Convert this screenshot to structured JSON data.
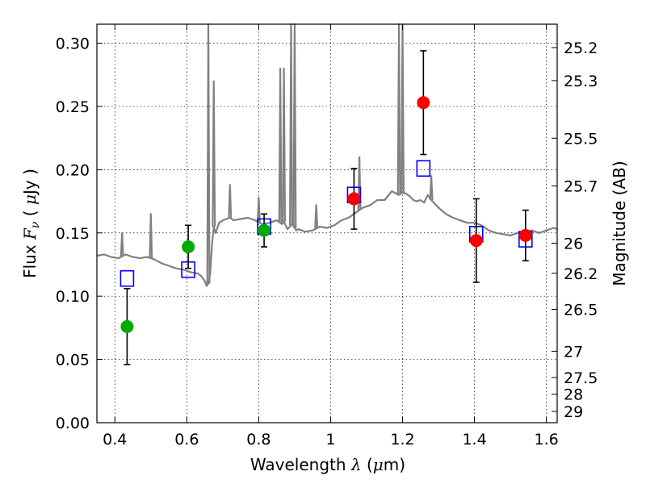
{
  "chart_data": {
    "type": "scatter",
    "x_axis": {
      "label_text": "Wavelength",
      "label_symbol": "λ",
      "label_unit_open": " (",
      "label_unit_mu": "μ",
      "label_unit_rest": "m)",
      "range": [
        0.35,
        1.63
      ],
      "ticks": [
        0.4,
        0.6,
        0.8,
        1.0,
        1.2,
        1.4,
        1.6
      ],
      "tick_labels": [
        "0.4",
        "0.6",
        "0.8",
        "1",
        "1.2",
        "1.4",
        "1.6"
      ]
    },
    "y_axis": {
      "label_text": "Flux",
      "label_symbol": "F",
      "label_subscript": "ν",
      "label_unit_open": "( ",
      "label_unit_mu": "μ",
      "label_unit_rest": "Jy )",
      "range": [
        0.0,
        0.315
      ],
      "ticks": [
        0.0,
        0.05,
        0.1,
        0.15,
        0.2,
        0.25,
        0.3
      ],
      "tick_labels": [
        "0.00",
        "0.05",
        "0.10",
        "0.15",
        "0.20",
        "0.25",
        "0.30"
      ]
    },
    "y2_axis": {
      "label": "Magnitude (AB)",
      "ticks": [
        {
          "label": "25.2",
          "flux": 0.2965
        },
        {
          "label": "25.3",
          "flux": 0.2704
        },
        {
          "label": "25.5",
          "flux": 0.2249
        },
        {
          "label": "25.7",
          "flux": 0.1871
        },
        {
          "label": "26",
          "flux": 0.1419
        },
        {
          "label": "26.2",
          "flux": 0.1181
        },
        {
          "label": "26.5",
          "flux": 0.0896
        },
        {
          "label": "27",
          "flux": 0.0565
        },
        {
          "label": "27.5",
          "flux": 0.0357
        },
        {
          "label": "28",
          "flux": 0.0225
        },
        {
          "label": "29",
          "flux": 0.0089
        }
      ]
    },
    "grid": true,
    "colors": {
      "spectrum": "#808080",
      "model_box": "#0000ff",
      "optical_point": "#00aa00",
      "nir_point": "#ff0000",
      "errorbar": "#000000"
    },
    "spectrum": {
      "x": [
        0.35,
        0.37,
        0.39,
        0.41,
        0.43,
        0.45,
        0.47,
        0.49,
        0.5,
        0.51,
        0.53,
        0.55,
        0.57,
        0.59,
        0.61,
        0.63,
        0.64,
        0.65,
        0.655,
        0.66,
        0.665,
        0.67,
        0.675,
        0.68,
        0.69,
        0.7,
        0.71,
        0.72,
        0.73,
        0.75,
        0.77,
        0.79,
        0.81,
        0.83,
        0.85,
        0.86,
        0.865,
        0.87,
        0.875,
        0.88,
        0.89,
        0.895,
        0.9,
        0.905,
        0.91,
        0.93,
        0.95,
        0.97,
        0.99,
        1.01,
        1.03,
        1.05,
        1.07,
        1.09,
        1.11,
        1.13,
        1.15,
        1.17,
        1.19,
        1.2,
        1.21,
        1.22,
        1.23,
        1.24,
        1.25,
        1.26,
        1.27,
        1.28,
        1.29,
        1.3,
        1.32,
        1.34,
        1.36,
        1.38,
        1.4,
        1.42,
        1.44,
        1.46,
        1.48,
        1.5,
        1.52,
        1.54,
        1.56,
        1.58,
        1.6,
        1.62,
        1.63
      ],
      "y": [
        0.132,
        0.133,
        0.131,
        0.13,
        0.133,
        0.131,
        0.13,
        0.131,
        0.13,
        0.129,
        0.126,
        0.124,
        0.122,
        0.121,
        0.119,
        0.118,
        0.116,
        0.112,
        0.108,
        0.11,
        0.118,
        0.14,
        0.155,
        0.15,
        0.158,
        0.16,
        0.161,
        0.162,
        0.16,
        0.161,
        0.162,
        0.16,
        0.157,
        0.158,
        0.16,
        0.158,
        0.157,
        0.159,
        0.156,
        0.153,
        0.156,
        0.158,
        0.154,
        0.152,
        0.153,
        0.151,
        0.152,
        0.155,
        0.154,
        0.156,
        0.16,
        0.162,
        0.166,
        0.17,
        0.172,
        0.176,
        0.176,
        0.183,
        0.18,
        0.182,
        0.181,
        0.179,
        0.176,
        0.175,
        0.176,
        0.174,
        0.18,
        0.176,
        0.173,
        0.17,
        0.165,
        0.162,
        0.16,
        0.158,
        0.158,
        0.156,
        0.152,
        0.15,
        0.149,
        0.148,
        0.15,
        0.151,
        0.152,
        0.15,
        0.152,
        0.154,
        0.153
      ],
      "lines": [
        {
          "x": 0.42,
          "peak": 0.15
        },
        {
          "x": 0.5,
          "peak": 0.165
        },
        {
          "x": 0.66,
          "peak": 0.32
        },
        {
          "x": 0.675,
          "peak": 0.27
        },
        {
          "x": 0.72,
          "peak": 0.188
        },
        {
          "x": 0.8,
          "peak": 0.178
        },
        {
          "x": 0.86,
          "peak": 0.28
        },
        {
          "x": 0.87,
          "peak": 0.28
        },
        {
          "x": 0.89,
          "peak": 0.32
        },
        {
          "x": 0.9,
          "peak": 0.32
        },
        {
          "x": 0.96,
          "peak": 0.172
        },
        {
          "x": 1.08,
          "peak": 0.21
        },
        {
          "x": 1.19,
          "peak": 0.32
        },
        {
          "x": 1.2,
          "peak": 0.32
        },
        {
          "x": 1.28,
          "peak": 0.195
        }
      ]
    },
    "model_points": {
      "x": [
        0.434,
        0.604,
        0.815,
        1.065,
        1.258,
        1.405,
        1.542
      ],
      "y": [
        0.114,
        0.121,
        0.155,
        0.18,
        0.201,
        0.149,
        0.145
      ]
    },
    "optical_points": {
      "x": [
        0.434,
        0.604,
        0.815
      ],
      "y": [
        0.076,
        0.139,
        0.152
      ],
      "yerr": [
        0.03,
        0.017,
        0.013
      ]
    },
    "nir_points": {
      "x": [
        1.065,
        1.258,
        1.405,
        1.542
      ],
      "y": [
        0.177,
        0.253,
        0.144,
        0.148
      ],
      "yerr": [
        0.024,
        0.041,
        0.033,
        0.02
      ]
    }
  }
}
